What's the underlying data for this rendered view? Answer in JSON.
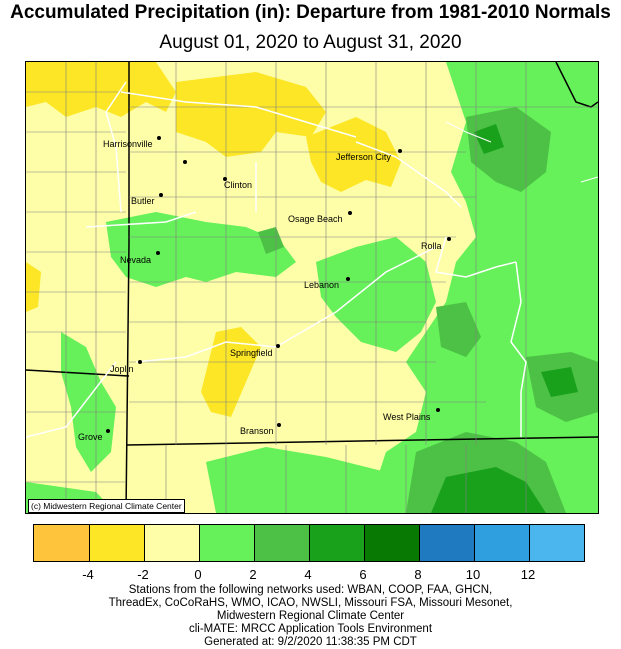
{
  "title": "Accumulated Precipitation (in): Departure from 1981-2010 Normals",
  "subtitle": "August 01, 2020 to August 31, 2020",
  "credit": "(c) Midwestern Regional Climate Center",
  "cities": [
    {
      "name": "Harrisonville"
    },
    {
      "name": "Clinton"
    },
    {
      "name": "Butler"
    },
    {
      "name": "Jefferson City"
    },
    {
      "name": "Osage Beach"
    },
    {
      "name": "Rolla"
    },
    {
      "name": "Nevada"
    },
    {
      "name": "Lebanon"
    },
    {
      "name": "Springfield"
    },
    {
      "name": "Joplin"
    },
    {
      "name": "West Plains"
    },
    {
      "name": "Branson"
    },
    {
      "name": "Grove"
    }
  ],
  "legend": {
    "colors": [
      "#fdc43c",
      "#fce626",
      "#fefea8",
      "#66f05a",
      "#4cc145",
      "#19a11c",
      "#087a03",
      "#1f7ac0",
      "#2f9fe0",
      "#4bb5ee"
    ],
    "ticks": [
      "-4",
      "-2",
      "0",
      "2",
      "4",
      "6",
      "8",
      "10",
      "12"
    ]
  },
  "footer": {
    "line1": "Stations from the following networks used: WBAN, COOP, FAA, GHCN,",
    "line2": "ThreadEx, CoCoRaHS, WMO, ICAO, NWSLI, Missouri FSA, Missouri Mesonet,",
    "line3": "Midwestern Regional Climate Center",
    "line4": "cli-MATE: MRCC Application Tools Environment",
    "line5": "Generated at: 9/2/2020 11:38:35 PM CDT"
  }
}
